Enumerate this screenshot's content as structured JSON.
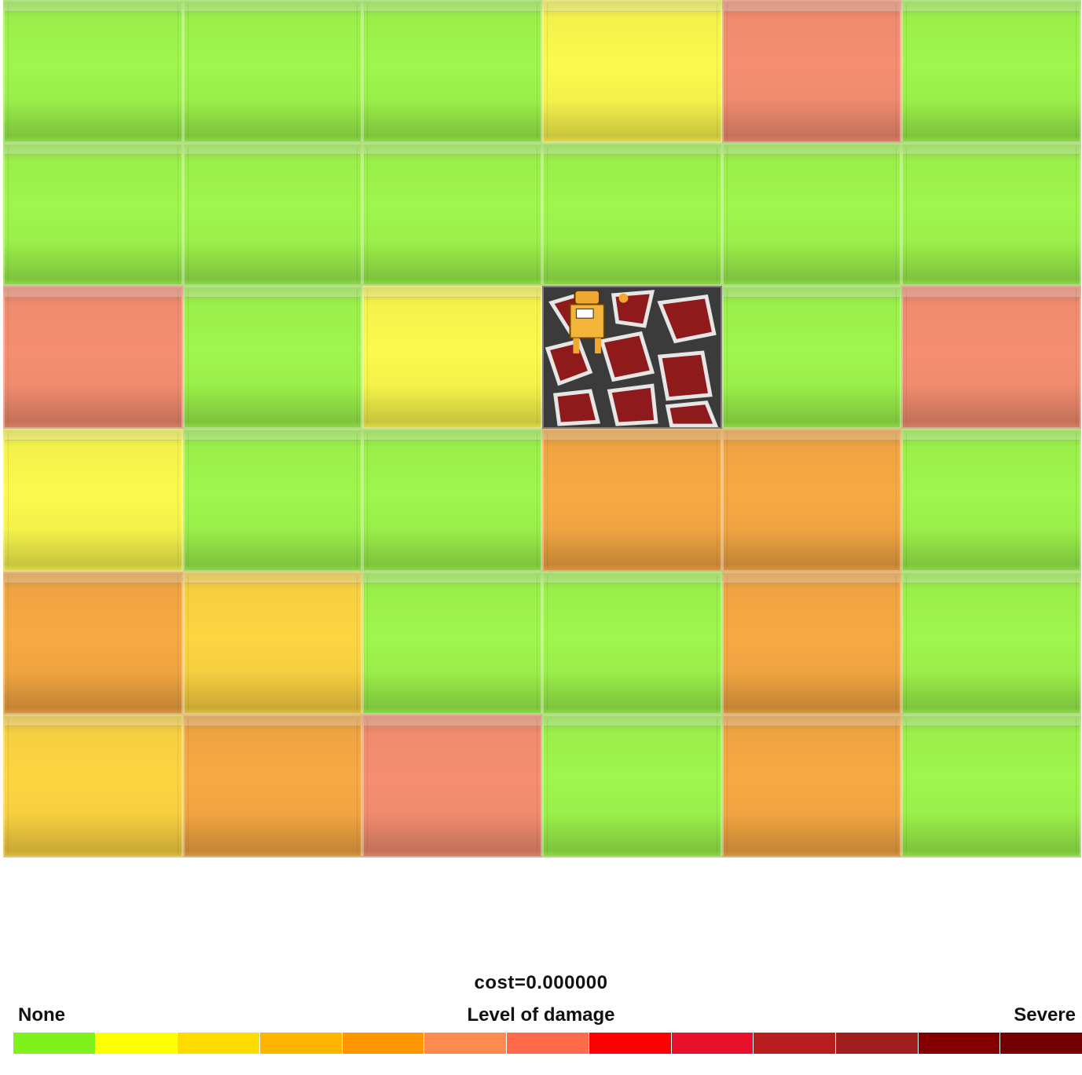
{
  "damage_colors": {
    "0": "#9aef4a",
    "1": "#f4f24a",
    "2": "#f6cf40",
    "3": "#f0a441",
    "4": "#ef8b6e"
  },
  "grid": {
    "rows": 6,
    "cols": 6,
    "cells": [
      [
        0,
        0,
        0,
        1,
        4,
        0
      ],
      [
        0,
        0,
        0,
        0,
        0,
        0
      ],
      [
        4,
        0,
        1,
        "robot",
        0,
        4
      ],
      [
        1,
        0,
        0,
        3,
        3,
        0
      ],
      [
        3,
        2,
        0,
        0,
        3,
        0
      ],
      [
        2,
        3,
        4,
        0,
        3,
        0
      ]
    ],
    "robot_icon": "robot-on-cracked-floor-icon"
  },
  "status": {
    "cost": "cost=0.000000"
  },
  "legend": {
    "left_label": "None",
    "title": "Level of damage",
    "right_label": "Severe",
    "colors": [
      "#7ff21d",
      "#ffff00",
      "#ffdc00",
      "#ffb400",
      "#ff9600",
      "#ff8a50",
      "#ff6a4a",
      "#ff0000",
      "#e8102a",
      "#b81e1e",
      "#a01e1e",
      "#840000",
      "#720000"
    ]
  }
}
